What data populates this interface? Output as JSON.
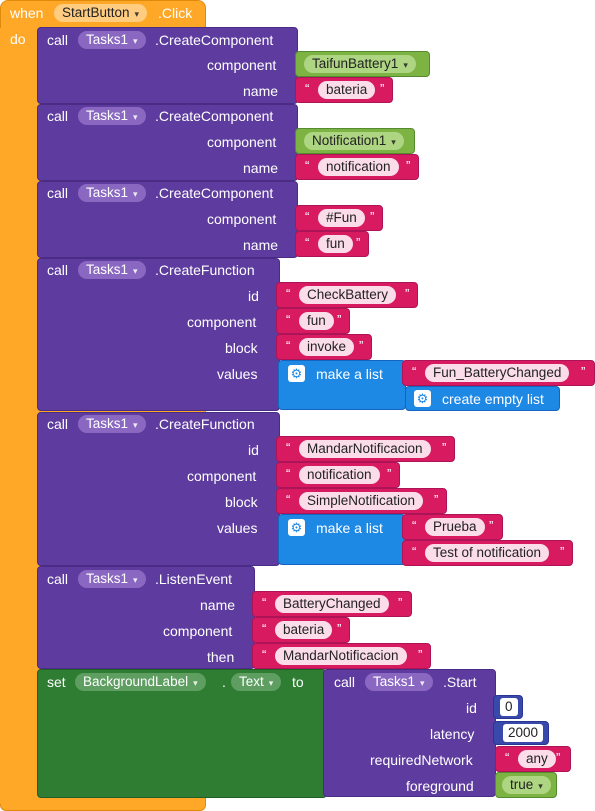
{
  "event": {
    "when": "when",
    "component": "StartButton",
    "event_name": ".Click",
    "do": "do"
  },
  "keywords": {
    "call": "call",
    "set": "set",
    "to": "to",
    "dot": "."
  },
  "create1": {
    "component": "Tasks1",
    "method": ".CreateComponent",
    "args": [
      {
        "label": "component",
        "value": "TaifunBattery1"
      },
      {
        "label": "name",
        "value": "bateria"
      }
    ]
  },
  "create2": {
    "component": "Tasks1",
    "method": ".CreateComponent",
    "args": [
      {
        "label": "component",
        "value": "Notification1"
      },
      {
        "label": "name",
        "value": "notification"
      }
    ]
  },
  "create3": {
    "component": "Tasks1",
    "method": ".CreateComponent",
    "args": [
      {
        "label": "component",
        "value": "#Fun"
      },
      {
        "label": "name",
        "value": "fun"
      }
    ]
  },
  "func1": {
    "component": "Tasks1",
    "method": ".CreateFunction",
    "args": [
      {
        "label": "id",
        "value": "CheckBattery"
      },
      {
        "label": "component",
        "value": "fun"
      },
      {
        "label": "block",
        "value": "invoke"
      },
      {
        "label": "values",
        "value": ""
      }
    ],
    "make_list": "make a list",
    "list_items": [
      "Fun_BatteryChanged"
    ],
    "create_empty_list": "create empty list"
  },
  "func2": {
    "component": "Tasks1",
    "method": ".CreateFunction",
    "args": [
      {
        "label": "id",
        "value": "MandarNotificacion"
      },
      {
        "label": "component",
        "value": "notification"
      },
      {
        "label": "block",
        "value": "SimpleNotification"
      },
      {
        "label": "values",
        "value": ""
      }
    ],
    "make_list": "make a list",
    "list_items": [
      "Prueba",
      "Test of notification"
    ]
  },
  "listen": {
    "component": "Tasks1",
    "method": ".ListenEvent",
    "args": [
      {
        "label": "name",
        "value": "BatteryChanged"
      },
      {
        "label": "component",
        "value": "bateria"
      },
      {
        "label": "then",
        "value": "MandarNotificacion"
      }
    ]
  },
  "setblock": {
    "component": "BackgroundLabel",
    "property": "Text",
    "call_component": "Tasks1",
    "call_method": ".Start",
    "args": [
      {
        "label": "id",
        "value": "0"
      },
      {
        "label": "latency",
        "value": "2000"
      },
      {
        "label": "requiredNetwork",
        "value": "any"
      },
      {
        "label": "foreground",
        "value": "true"
      }
    ]
  },
  "quote_open": "“",
  "quote_close": "”",
  "colors": {
    "event": "#ffa726",
    "procedure": "#5e3b9e",
    "setter": "#2e7d32",
    "text": "#d81b60",
    "component": "#7cb342",
    "math": "#3949ab",
    "list": "#1e88e5"
  }
}
